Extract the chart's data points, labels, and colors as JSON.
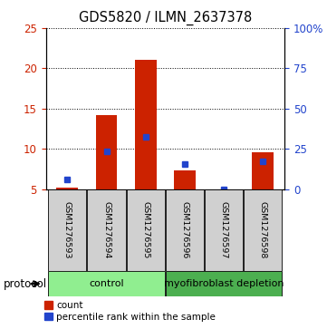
{
  "title": "GDS5820 / ILMN_2637378",
  "samples": [
    "GSM1276593",
    "GSM1276594",
    "GSM1276595",
    "GSM1276596",
    "GSM1276597",
    "GSM1276598"
  ],
  "count_values": [
    5.2,
    14.2,
    21.0,
    7.3,
    5.0,
    9.6
  ],
  "percentile_values": [
    6.2,
    9.7,
    11.5,
    8.1,
    5.0,
    8.4
  ],
  "baseline": 5.0,
  "ylim_left": [
    5,
    25
  ],
  "ylim_right": [
    0,
    100
  ],
  "yticks_left": [
    5,
    10,
    15,
    20,
    25
  ],
  "yticks_right": [
    0,
    25,
    50,
    75,
    100
  ],
  "yticklabels_right": [
    "0",
    "25",
    "50",
    "75",
    "100%"
  ],
  "groups": [
    {
      "label": "control",
      "indices": [
        0,
        1,
        2
      ],
      "color": "#90ee90"
    },
    {
      "label": "myofibroblast depletion",
      "indices": [
        3,
        4,
        5
      ],
      "color": "#4caf50"
    }
  ],
  "bar_color": "#cc2200",
  "percentile_color": "#2244cc",
  "bg_color": "#d0d0d0",
  "bar_width": 0.55,
  "legend_count_label": "count",
  "legend_pct_label": "percentile rank within the sample"
}
